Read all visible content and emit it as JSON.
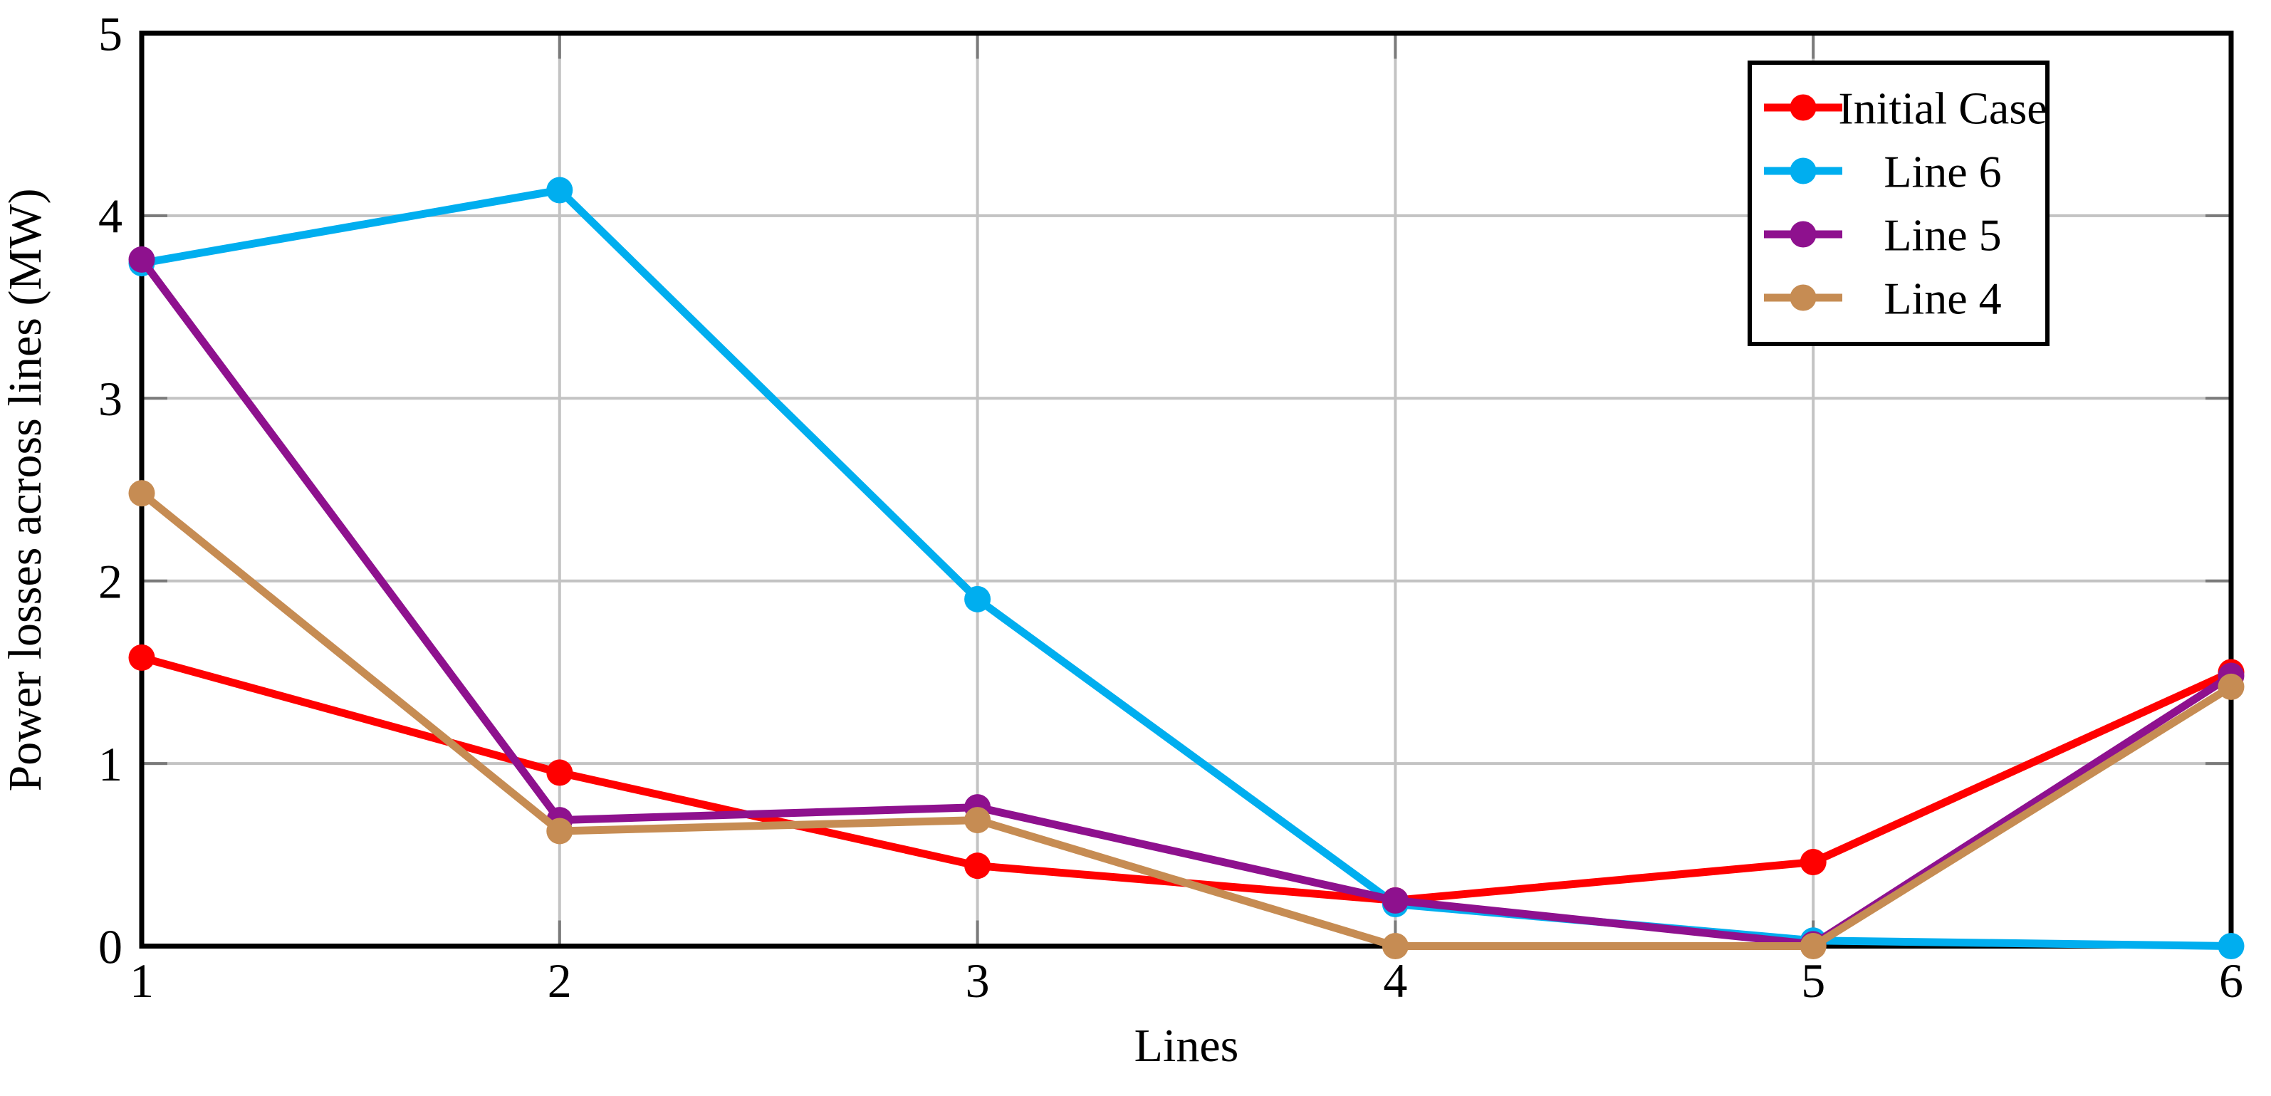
{
  "figure": {
    "background": "#ffffff"
  },
  "styles": {
    "grid_color": "#c3c3c3",
    "tick_color": "#7a7a7a",
    "axis_color": "#000000",
    "text_color": "#000000",
    "legend_border_color": "#000000",
    "legend_background": "#ffffff"
  },
  "chart_data": {
    "type": "line",
    "title": "",
    "xlabel": "Lines",
    "ylabel": "Power losses across lines (MW)",
    "x": [
      1,
      2,
      3,
      4,
      5,
      6
    ],
    "x_tick_labels": [
      "1",
      "2",
      "3",
      "4",
      "5",
      "6"
    ],
    "y_ticks": [
      0,
      1,
      2,
      3,
      4,
      5
    ],
    "y_tick_labels": [
      "0",
      "1",
      "2",
      "3",
      "4",
      "5"
    ],
    "xlim": [
      1,
      6
    ],
    "ylim": [
      0,
      5
    ],
    "grid": true,
    "legend_position": "top-right",
    "series": [
      {
        "name": "Initial Case",
        "color": "#ff0000",
        "values": [
          1.58,
          0.95,
          0.44,
          0.25,
          0.46,
          1.5
        ]
      },
      {
        "name": "Line 6",
        "color": "#00aeef",
        "values": [
          3.74,
          4.14,
          1.9,
          0.23,
          0.03,
          0.0
        ]
      },
      {
        "name": "Line 5",
        "color": "#8e118e",
        "values": [
          3.76,
          0.69,
          0.76,
          0.25,
          0.01,
          1.48
        ]
      },
      {
        "name": "Line 4",
        "color": "#c68c53",
        "values": [
          2.48,
          0.63,
          0.69,
          0.0,
          0.0,
          1.42
        ]
      }
    ]
  }
}
